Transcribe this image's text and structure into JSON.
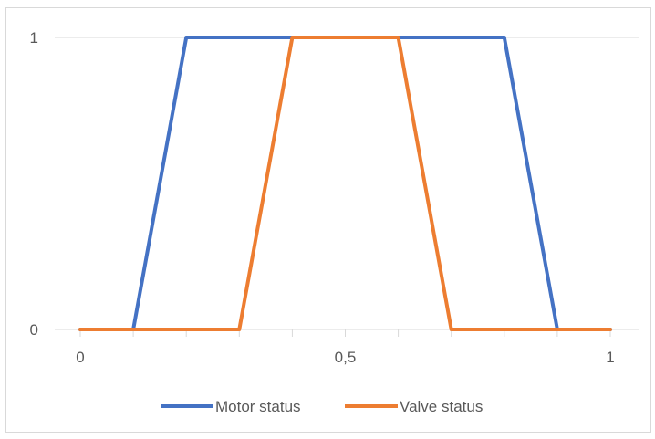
{
  "chart_data": {
    "type": "line",
    "title": "",
    "xlabel": "",
    "ylabel": "",
    "xlim": [
      0,
      1
    ],
    "ylim": [
      0,
      1
    ],
    "x_ticks": [
      {
        "value": 0,
        "label": "0"
      },
      {
        "value": 0.5,
        "label": "0,5"
      },
      {
        "value": 1,
        "label": "1"
      }
    ],
    "y_ticks": [
      {
        "value": 0,
        "label": "0"
      },
      {
        "value": 1,
        "label": "1"
      }
    ],
    "grid": "horizontal",
    "legend_position": "bottom",
    "series": [
      {
        "name": "Motor status",
        "color": "#4472c4",
        "x": [
          0,
          0.1,
          0.2,
          0.3,
          0.4,
          0.5,
          0.6,
          0.7,
          0.8,
          0.9,
          1
        ],
        "y": [
          0,
          0,
          1,
          1,
          1,
          1,
          1,
          1,
          1,
          0,
          0
        ]
      },
      {
        "name": "Valve status",
        "color": "#ed7d31",
        "x": [
          0,
          0.1,
          0.2,
          0.3,
          0.4,
          0.5,
          0.6,
          0.7,
          0.8,
          0.9,
          1
        ],
        "y": [
          0,
          0,
          0,
          0,
          1,
          1,
          1,
          0,
          0,
          0,
          0
        ]
      }
    ]
  }
}
